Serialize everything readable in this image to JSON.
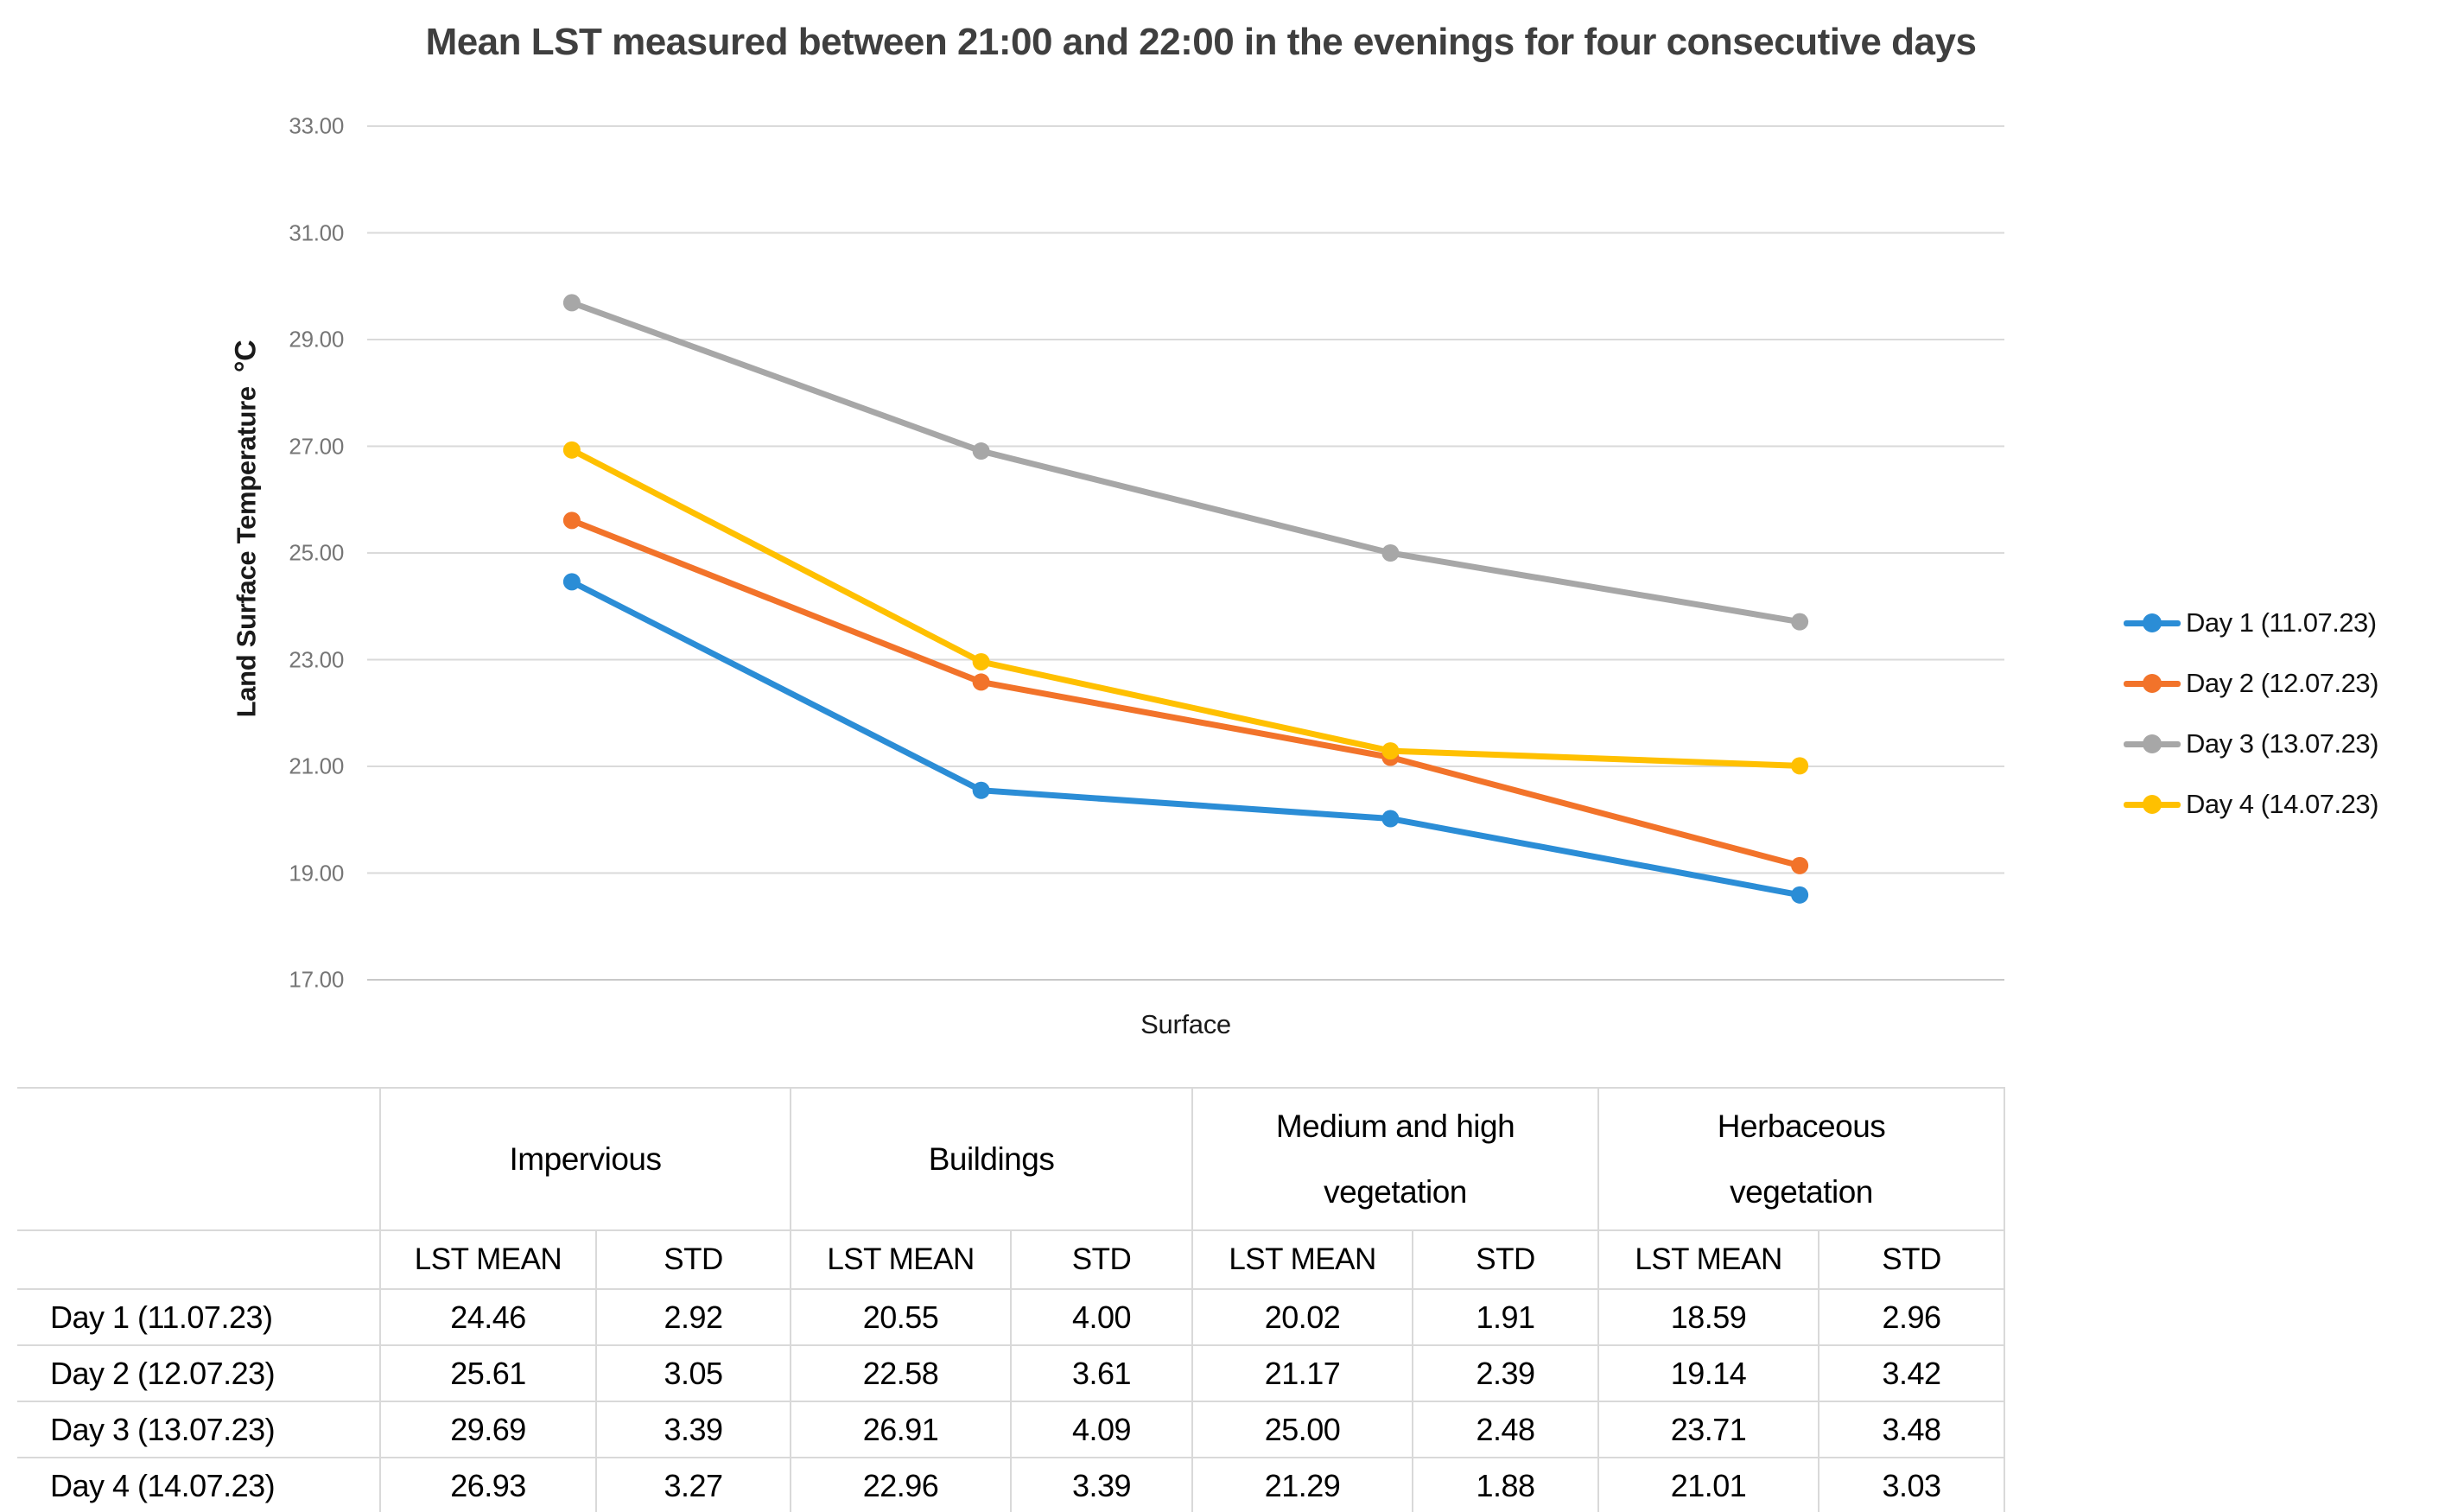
{
  "chart_data": {
    "type": "line",
    "title": "Mean LST measured between 21:00 and 22:00 in the evenings for four consecutive days",
    "xlabel": "Surface",
    "ylabel": "Land Surface Temperature",
    "ylabel_unit": "°C",
    "categories": [
      "Impervious",
      "Buildings",
      "Medium and high vegetation",
      "Herbaceous vegetation"
    ],
    "ylim": [
      17,
      33
    ],
    "ytick_labels": [
      "33.00",
      "31.00",
      "29.00",
      "27.00",
      "25.00",
      "23.00",
      "21.00",
      "19.00",
      "17.00"
    ],
    "grid": true,
    "legend_position": "right",
    "series": [
      {
        "name": "Day 1 (11.07.23)",
        "color": "#2B8DD6",
        "values": [
          24.46,
          20.55,
          20.02,
          18.59
        ]
      },
      {
        "name": "Day 2 (12.07.23)",
        "color": "#F2732A",
        "values": [
          25.61,
          22.58,
          21.17,
          19.14
        ]
      },
      {
        "name": "Day 3 (13.07.23)",
        "color": "#A7A7A7",
        "values": [
          29.69,
          26.91,
          25.0,
          23.71
        ]
      },
      {
        "name": "Day 4 (14.07.23)",
        "color": "#FFC000",
        "values": [
          26.93,
          22.96,
          21.29,
          21.01
        ]
      }
    ]
  },
  "table": {
    "corner_label": "",
    "column_groups": [
      "Impervious",
      "Buildings",
      "Medium and high vegetation",
      "Herbaceous vegetation"
    ],
    "sub_headers": [
      "LST MEAN",
      "STD"
    ],
    "rows": [
      {
        "label": "Day 1 (11.07.23)",
        "values": [
          "24.46",
          "2.92",
          "20.55",
          "4.00",
          "20.02",
          "1.91",
          "18.59",
          "2.96"
        ]
      },
      {
        "label": "Day 2 (12.07.23)",
        "values": [
          "25.61",
          "3.05",
          "22.58",
          "3.61",
          "21.17",
          "2.39",
          "19.14",
          "3.42"
        ]
      },
      {
        "label": "Day 3 (13.07.23)",
        "values": [
          "29.69",
          "3.39",
          "26.91",
          "4.09",
          "25.00",
          "2.48",
          "23.71",
          "3.48"
        ]
      },
      {
        "label": "Day 4 (14.07.23)",
        "values": [
          "26.93",
          "3.27",
          "22.96",
          "3.39",
          "21.29",
          "1.88",
          "21.01",
          "3.03"
        ]
      }
    ]
  },
  "colors": {
    "title_text": "#3F3F3F",
    "gridline": "#DADADA",
    "axis_line": "#C8C8C8",
    "tick_label": "#767676",
    "table_border": "#D9D9D9"
  }
}
